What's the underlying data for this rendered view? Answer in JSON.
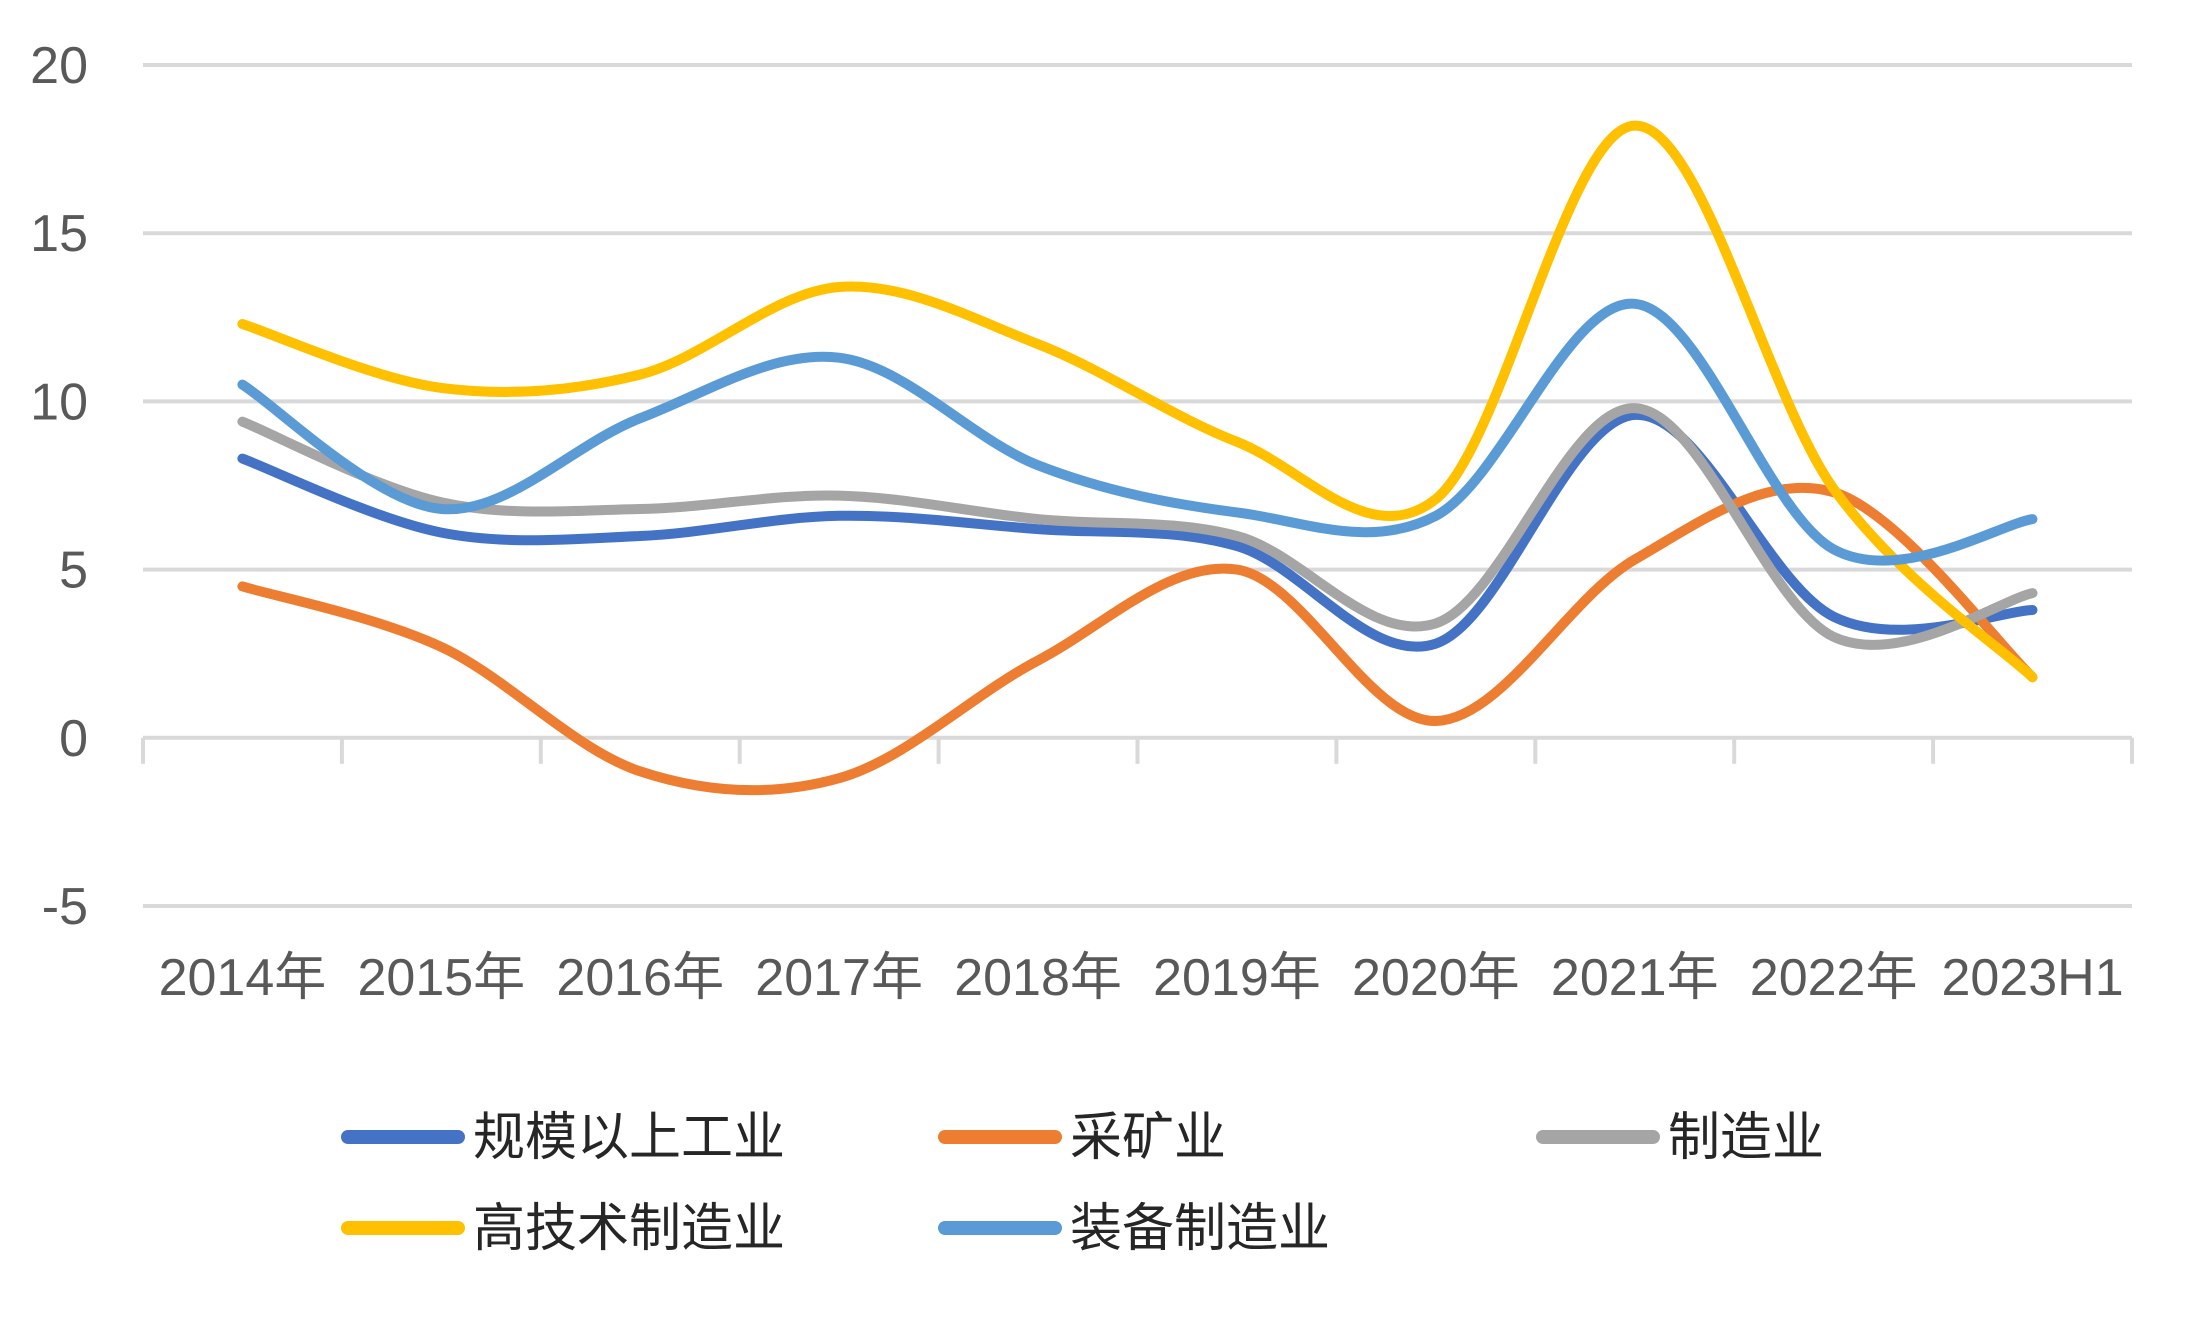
{
  "chart_data": {
    "type": "line",
    "categories": [
      "2014年",
      "2015年",
      "2016年",
      "2017年",
      "2018年",
      "2019年",
      "2020年",
      "2021年",
      "2022年",
      "2023H1"
    ],
    "yticks": [
      "-5",
      "0",
      "5",
      "10",
      "15",
      "20"
    ],
    "ylim": [
      -5,
      20
    ],
    "grid": true,
    "smooth": true,
    "legend_position": "bottom",
    "series": [
      {
        "name": "规模以上工业",
        "color": "#4472C4",
        "values": [
          8.3,
          6.1,
          6.0,
          6.6,
          6.2,
          5.7,
          2.8,
          9.6,
          3.6,
          3.8
        ]
      },
      {
        "name": "采矿业",
        "color": "#ED7D31",
        "values": [
          4.5,
          2.7,
          -1.0,
          -1.2,
          2.3,
          5.0,
          0.5,
          5.3,
          7.3,
          1.8
        ]
      },
      {
        "name": "制造业",
        "color": "#A5A5A5",
        "values": [
          9.4,
          7.0,
          6.8,
          7.2,
          6.5,
          6.0,
          3.4,
          9.8,
          3.0,
          4.3
        ]
      },
      {
        "name": "高技术制造业",
        "color": "#FFC000",
        "values": [
          12.3,
          10.4,
          10.8,
          13.4,
          11.7,
          8.8,
          7.1,
          18.2,
          7.4,
          1.8
        ]
      },
      {
        "name": "装备制造业",
        "color": "#5B9BD5",
        "values": [
          10.5,
          6.8,
          9.5,
          11.3,
          8.1,
          6.7,
          6.6,
          12.9,
          5.6,
          6.5
        ]
      }
    ]
  }
}
